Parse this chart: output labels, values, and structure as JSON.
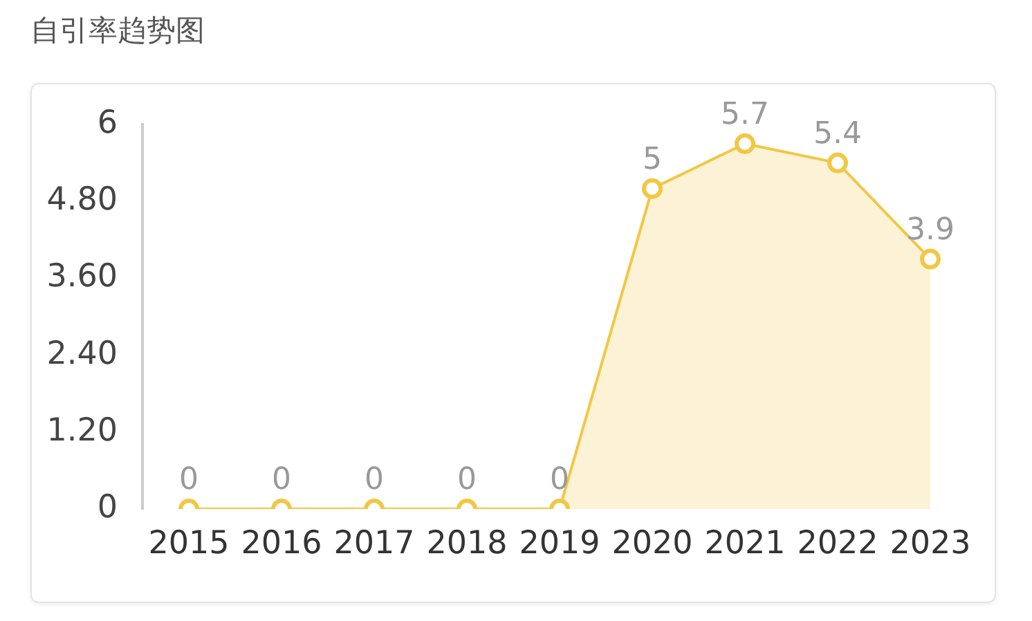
{
  "chart_data": {
    "type": "area",
    "title": "自引率趋势图",
    "categories": [
      "2015",
      "2016",
      "2017",
      "2018",
      "2019",
      "2020",
      "2021",
      "2022",
      "2023"
    ],
    "series": [
      {
        "color": "#f2c744",
        "values": [
          0,
          0,
          0,
          0,
          0,
          5,
          5.7,
          5.4,
          3.9
        ]
      }
    ],
    "ylim": [
      0,
      6
    ],
    "yticks": [
      0,
      {
        "value": 1.2,
        "label": "1.20"
      },
      {
        "value": 2.4,
        "label": "2.40"
      },
      {
        "value": 3.6,
        "label": "3.60"
      },
      {
        "value": 4.8,
        "label": "4.80"
      },
      6
    ],
    "grid": false,
    "legend": false,
    "marker": "circle",
    "line_style": "solid",
    "data_labels": true
  }
}
